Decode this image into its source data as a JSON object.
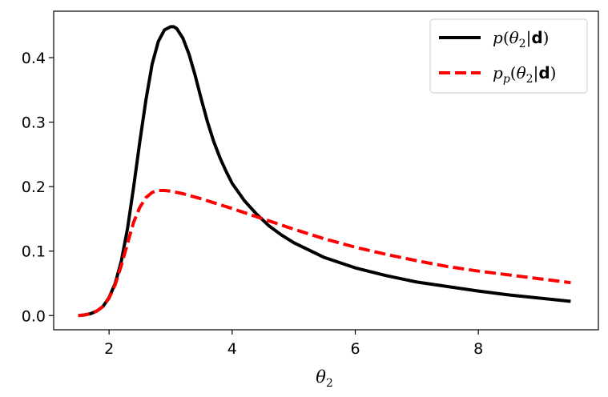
{
  "chart_data": {
    "type": "line",
    "title": "",
    "xlabel": "θ₂",
    "ylabel": "",
    "xlim": [
      1.1,
      9.95
    ],
    "ylim": [
      -0.022,
      0.472
    ],
    "xticks": [
      2,
      4,
      6,
      8
    ],
    "xtick_labels": [
      "2",
      "4",
      "6",
      "8"
    ],
    "yticks": [
      0.0,
      0.1,
      0.2,
      0.3,
      0.4
    ],
    "ytick_labels": [
      "0.0",
      "0.1",
      "0.2",
      "0.3",
      "0.4"
    ],
    "grid": false,
    "legend_position": "top-right",
    "series": [
      {
        "name": "p(θ₂|d)",
        "color": "#000000",
        "dash": "solid",
        "x": [
          1.5,
          1.6,
          1.7,
          1.8,
          1.9,
          2.0,
          2.1,
          2.2,
          2.3,
          2.4,
          2.5,
          2.6,
          2.7,
          2.8,
          2.9,
          3.0,
          3.05,
          3.1,
          3.2,
          3.3,
          3.4,
          3.5,
          3.6,
          3.7,
          3.8,
          3.9,
          4.0,
          4.2,
          4.4,
          4.6,
          4.8,
          5.0,
          5.5,
          6.0,
          6.5,
          7.0,
          7.5,
          8.0,
          8.5,
          9.0,
          9.5
        ],
        "y": [
          0.0,
          0.001,
          0.003,
          0.007,
          0.014,
          0.028,
          0.05,
          0.085,
          0.135,
          0.2,
          0.27,
          0.335,
          0.39,
          0.425,
          0.443,
          0.448,
          0.448,
          0.445,
          0.43,
          0.405,
          0.372,
          0.335,
          0.3,
          0.27,
          0.245,
          0.224,
          0.205,
          0.178,
          0.157,
          0.139,
          0.125,
          0.113,
          0.09,
          0.074,
          0.062,
          0.052,
          0.045,
          0.038,
          0.032,
          0.027,
          0.022
        ]
      },
      {
        "name": "p_p(θ₂|d)",
        "color": "#ff0000",
        "dash": "dashed",
        "x": [
          1.5,
          1.6,
          1.7,
          1.8,
          1.9,
          2.0,
          2.1,
          2.2,
          2.3,
          2.4,
          2.5,
          2.6,
          2.7,
          2.8,
          2.9,
          3.0,
          3.2,
          3.5,
          4.0,
          4.5,
          5.0,
          5.5,
          6.0,
          6.5,
          7.0,
          7.5,
          8.0,
          8.5,
          9.0,
          9.5
        ],
        "y": [
          0.0,
          0.001,
          0.003,
          0.007,
          0.014,
          0.027,
          0.048,
          0.078,
          0.112,
          0.145,
          0.168,
          0.183,
          0.191,
          0.194,
          0.194,
          0.193,
          0.189,
          0.181,
          0.166,
          0.15,
          0.134,
          0.119,
          0.106,
          0.095,
          0.085,
          0.076,
          0.069,
          0.063,
          0.057,
          0.051
        ]
      }
    ]
  }
}
